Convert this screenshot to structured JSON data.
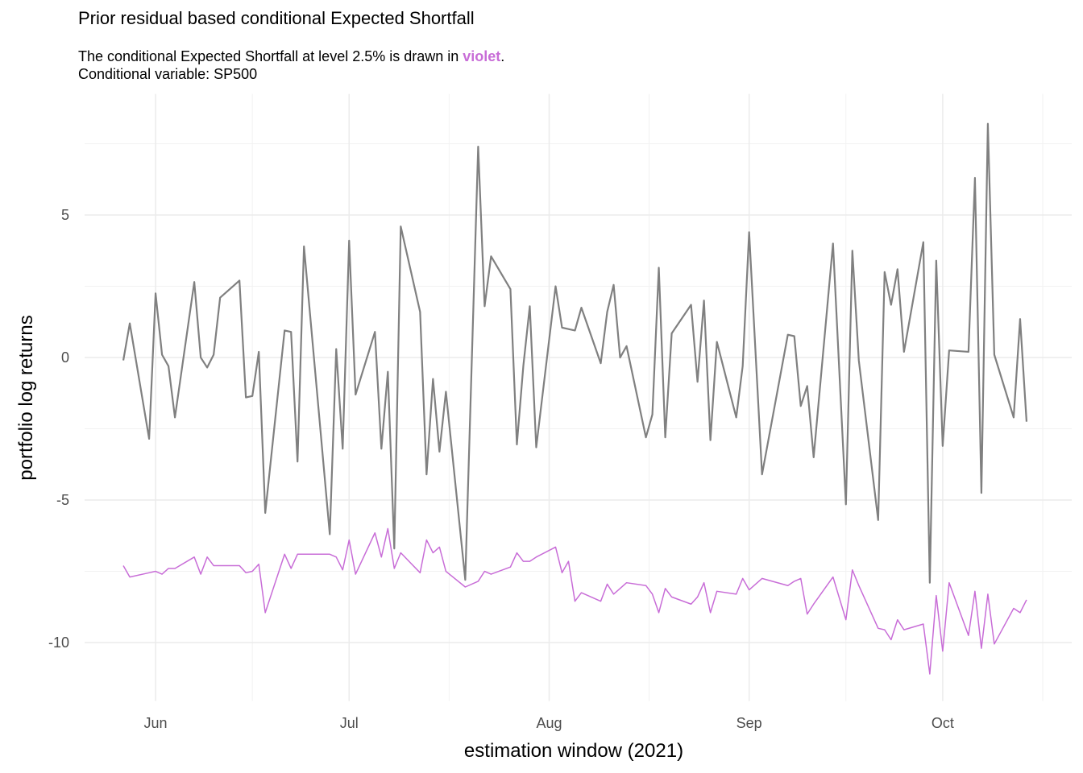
{
  "chart_data": {
    "type": "line",
    "title": "Prior residual based conditional Expected Shortfall",
    "subtitle": [
      "The conditional Expected Shortfall at level 2.5% is drawn in ",
      "violet",
      "."
    ],
    "subtitle2": "Conditional variable: SP500",
    "highlight_color": "#c86dd7",
    "x_label": "estimation window (2021)",
    "y_label": "portfolio log returns",
    "x": [
      147,
      148,
      151,
      152,
      153,
      154,
      155,
      158,
      159,
      160,
      161,
      162,
      165,
      166,
      167,
      168,
      169,
      172,
      173,
      174,
      175,
      179,
      180,
      181,
      182,
      183,
      186,
      187,
      188,
      189,
      190,
      193,
      194,
      195,
      196,
      197,
      200,
      202,
      203,
      204,
      207,
      208,
      209,
      210,
      211,
      214,
      215,
      216,
      217,
      218,
      221,
      222,
      223,
      224,
      225,
      228,
      229,
      230,
      231,
      232,
      235,
      236,
      237,
      238,
      239,
      242,
      243,
      244,
      246,
      250,
      251,
      252,
      253,
      254,
      257,
      259,
      260,
      261,
      264,
      265,
      266,
      267,
      268,
      271,
      272,
      273,
      274,
      275,
      278,
      279,
      280,
      281,
      282,
      285,
      286,
      287
    ],
    "series": [
      {
        "color": "#808080",
        "width": 2.2,
        "values": [
          -0.1,
          1.2,
          -2.85,
          2.25,
          0.1,
          -0.3,
          -2.1,
          2.65,
          0.0,
          -0.35,
          0.1,
          2.1,
          2.7,
          -1.4,
          -1.35,
          0.2,
          -5.45,
          0.95,
          0.9,
          -3.65,
          3.9,
          -6.2,
          0.3,
          -3.2,
          4.1,
          -1.3,
          0.9,
          -3.2,
          -0.5,
          -6.7,
          4.6,
          1.6,
          -4.1,
          -0.75,
          -3.3,
          -1.2,
          -7.8,
          7.4,
          1.8,
          3.55,
          2.4,
          -3.05,
          -0.3,
          1.8,
          -3.15,
          2.5,
          1.05,
          1.0,
          0.95,
          1.75,
          -0.2,
          1.6,
          2.55,
          0.0,
          0.4,
          -2.8,
          -2.0,
          3.15,
          -2.8,
          0.85,
          1.85,
          -0.85,
          2.0,
          -2.9,
          0.55,
          -2.1,
          -0.3,
          4.4,
          -4.1,
          0.8,
          0.75,
          -1.7,
          -1.0,
          -3.5,
          4.0,
          -5.15,
          3.75,
          -0.1,
          -5.7,
          3.0,
          1.85,
          3.1,
          0.2,
          4.05,
          -7.9,
          3.4,
          -3.1,
          0.25,
          0.2,
          6.3,
          -4.75,
          8.2,
          0.1,
          -2.1,
          1.35,
          -2.25
        ]
      },
      {
        "color": "#c86dd7",
        "width": 1.5,
        "values": [
          -7.3,
          -7.7,
          -7.55,
          -7.5,
          -7.6,
          -7.4,
          -7.4,
          -7.0,
          -7.6,
          -7.0,
          -7.3,
          -7.3,
          -7.3,
          -7.55,
          -7.5,
          -7.25,
          -8.95,
          -6.9,
          -7.4,
          -6.9,
          -6.9,
          -6.9,
          -7.0,
          -7.45,
          -6.4,
          -7.6,
          -6.15,
          -7.0,
          -6.0,
          -7.4,
          -6.85,
          -7.55,
          -6.4,
          -6.85,
          -6.65,
          -7.5,
          -8.05,
          -7.85,
          -7.5,
          -7.6,
          -7.35,
          -6.85,
          -7.15,
          -7.15,
          -7.0,
          -6.65,
          -7.55,
          -7.15,
          -8.55,
          -8.25,
          -8.55,
          -7.95,
          -8.3,
          -8.1,
          -7.9,
          -8.0,
          -8.3,
          -8.95,
          -8.1,
          -8.4,
          -8.65,
          -8.4,
          -7.9,
          -8.95,
          -8.2,
          -8.3,
          -7.75,
          -8.15,
          -7.75,
          -8.0,
          -7.85,
          -7.75,
          -9.0,
          -8.65,
          -7.7,
          -9.2,
          -7.45,
          -8.0,
          -9.5,
          -9.55,
          -9.9,
          -9.2,
          -9.55,
          -9.35,
          -11.1,
          -8.35,
          -10.3,
          -7.9,
          -9.75,
          -8.2,
          -10.2,
          -8.3,
          -10.05,
          -8.8,
          -8.95,
          -8.5
        ]
      }
    ],
    "xlim": [
      141,
      294
    ],
    "xticks": [
      {
        "value": 152,
        "label": "Jun"
      },
      {
        "value": 182,
        "label": "Jul"
      },
      {
        "value": 213,
        "label": "Aug"
      },
      {
        "value": 244,
        "label": "Sep"
      },
      {
        "value": 274,
        "label": "Oct"
      }
    ],
    "x_minor_ticks": [
      167,
      197.5,
      228.5,
      259,
      289.5
    ],
    "ylim": [
      -12.05,
      9.25
    ],
    "yticks": [
      5,
      0,
      -5,
      -10
    ],
    "y_minor_ticks": [
      7.5,
      2.5,
      -2.5,
      -7.5
    ],
    "grid": true
  }
}
